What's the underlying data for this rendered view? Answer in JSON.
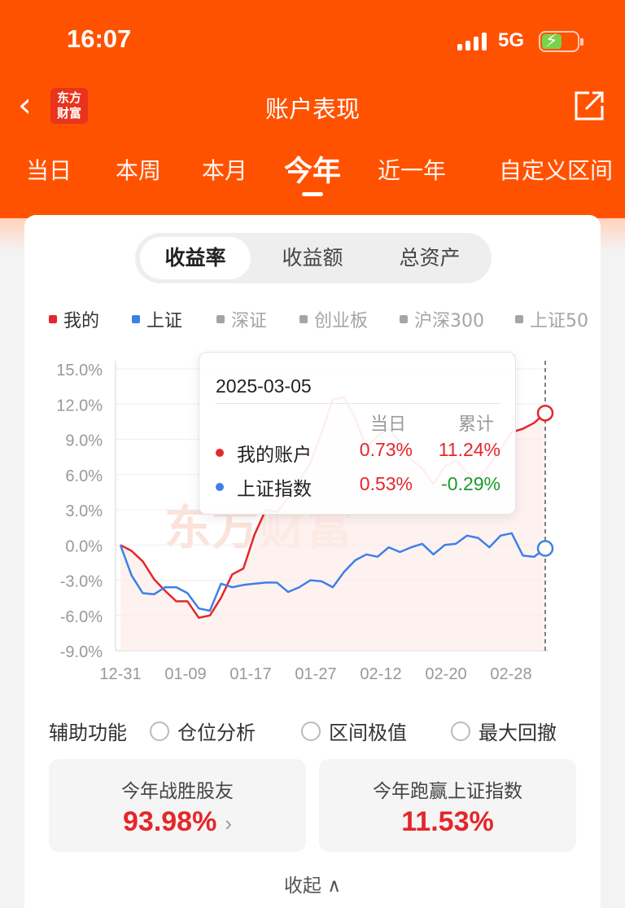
{
  "status_bar": {
    "time": "16:07",
    "network": "5G"
  },
  "header": {
    "title": "账户表现",
    "logo_line1": "东方",
    "logo_line2": "财富"
  },
  "period_tabs": [
    {
      "label": "当日"
    },
    {
      "label": "本周"
    },
    {
      "label": "本月"
    },
    {
      "label": "今年",
      "active": true
    },
    {
      "label": "近一年"
    },
    {
      "label": "自定义区间"
    }
  ],
  "metric_tabs": [
    {
      "label": "收益率",
      "active": true
    },
    {
      "label": "收益额"
    },
    {
      "label": "总资产"
    }
  ],
  "legend": [
    {
      "label": "我的",
      "color": "#e5262a",
      "active": true
    },
    {
      "label": "上证",
      "color": "#3f7fe8",
      "active": true
    },
    {
      "label": "深证",
      "color": "#a5a5a5",
      "active": false
    },
    {
      "label": "创业板",
      "color": "#a5a5a5",
      "active": false
    },
    {
      "label": "沪深300",
      "color": "#a5a5a5",
      "active": false
    },
    {
      "label": "上证50",
      "color": "#a5a5a5",
      "active": false
    }
  ],
  "watermark": "东方财富",
  "tooltip": {
    "date": "2025-03-05",
    "col_daily": "当日",
    "col_total": "累计",
    "rows": [
      {
        "name": "我的账户",
        "daily": "0.73%",
        "total": "11.24%",
        "color": "#e5262a",
        "daily_color": "#e5262a",
        "total_color": "#e5262a"
      },
      {
        "name": "上证指数",
        "daily": "0.53%",
        "total": "-0.29%",
        "color": "#3f7fe8",
        "daily_color": "#e5262a",
        "total_color": "#1a9a2c"
      }
    ]
  },
  "chart_data": {
    "type": "line",
    "y_ticks": [
      "15.0%",
      "12.0%",
      "9.0%",
      "6.0%",
      "3.0%",
      "0.0%",
      "-3.0%",
      "-6.0%",
      "-9.0%"
    ],
    "ylim": [
      -9,
      15
    ],
    "x_ticks": [
      "12-31",
      "01-09",
      "01-17",
      "01-27",
      "02-12",
      "02-20",
      "02-28"
    ],
    "series": [
      {
        "name": "我的",
        "color": "#e5262a",
        "values": [
          0.0,
          -0.5,
          -1.4,
          -2.9,
          -3.9,
          -4.8,
          -4.8,
          -6.2,
          -6.0,
          -4.5,
          -2.5,
          -2.0,
          0.9,
          3.0,
          2.8,
          4.0,
          5.5,
          7.0,
          9.6,
          12.4,
          12.6,
          10.8,
          8.3,
          9.3,
          9.9,
          8.8,
          7.3,
          6.5,
          5.2,
          6.7,
          7.2,
          6.2,
          5.7,
          6.8,
          8.2,
          9.6,
          9.9,
          10.4,
          11.24
        ]
      },
      {
        "name": "上证",
        "color": "#3f7fe8",
        "values": [
          0.0,
          -2.6,
          -4.1,
          -4.2,
          -3.6,
          -3.6,
          -4.1,
          -5.4,
          -5.6,
          -3.3,
          -3.6,
          -3.4,
          -3.3,
          -3.2,
          -3.2,
          -4.0,
          -3.6,
          -3.0,
          -3.1,
          -3.6,
          -2.3,
          -1.3,
          -0.8,
          -1.0,
          -0.2,
          -0.6,
          -0.2,
          0.1,
          -0.8,
          0.0,
          0.1,
          0.8,
          0.6,
          -0.2,
          0.8,
          1.0,
          -0.9,
          -1.0,
          -0.29
        ]
      }
    ]
  },
  "aux": {
    "label": "辅助功能",
    "options": [
      {
        "label": "仓位分析"
      },
      {
        "label": "区间极值"
      },
      {
        "label": "最大回撤"
      }
    ]
  },
  "stats": [
    {
      "label": "今年战胜股友",
      "value": "93.98%",
      "arrow": "›"
    },
    {
      "label": "今年跑赢上证指数",
      "value": "11.53%"
    }
  ],
  "collapse": {
    "label": "收起",
    "icon": "∧"
  }
}
